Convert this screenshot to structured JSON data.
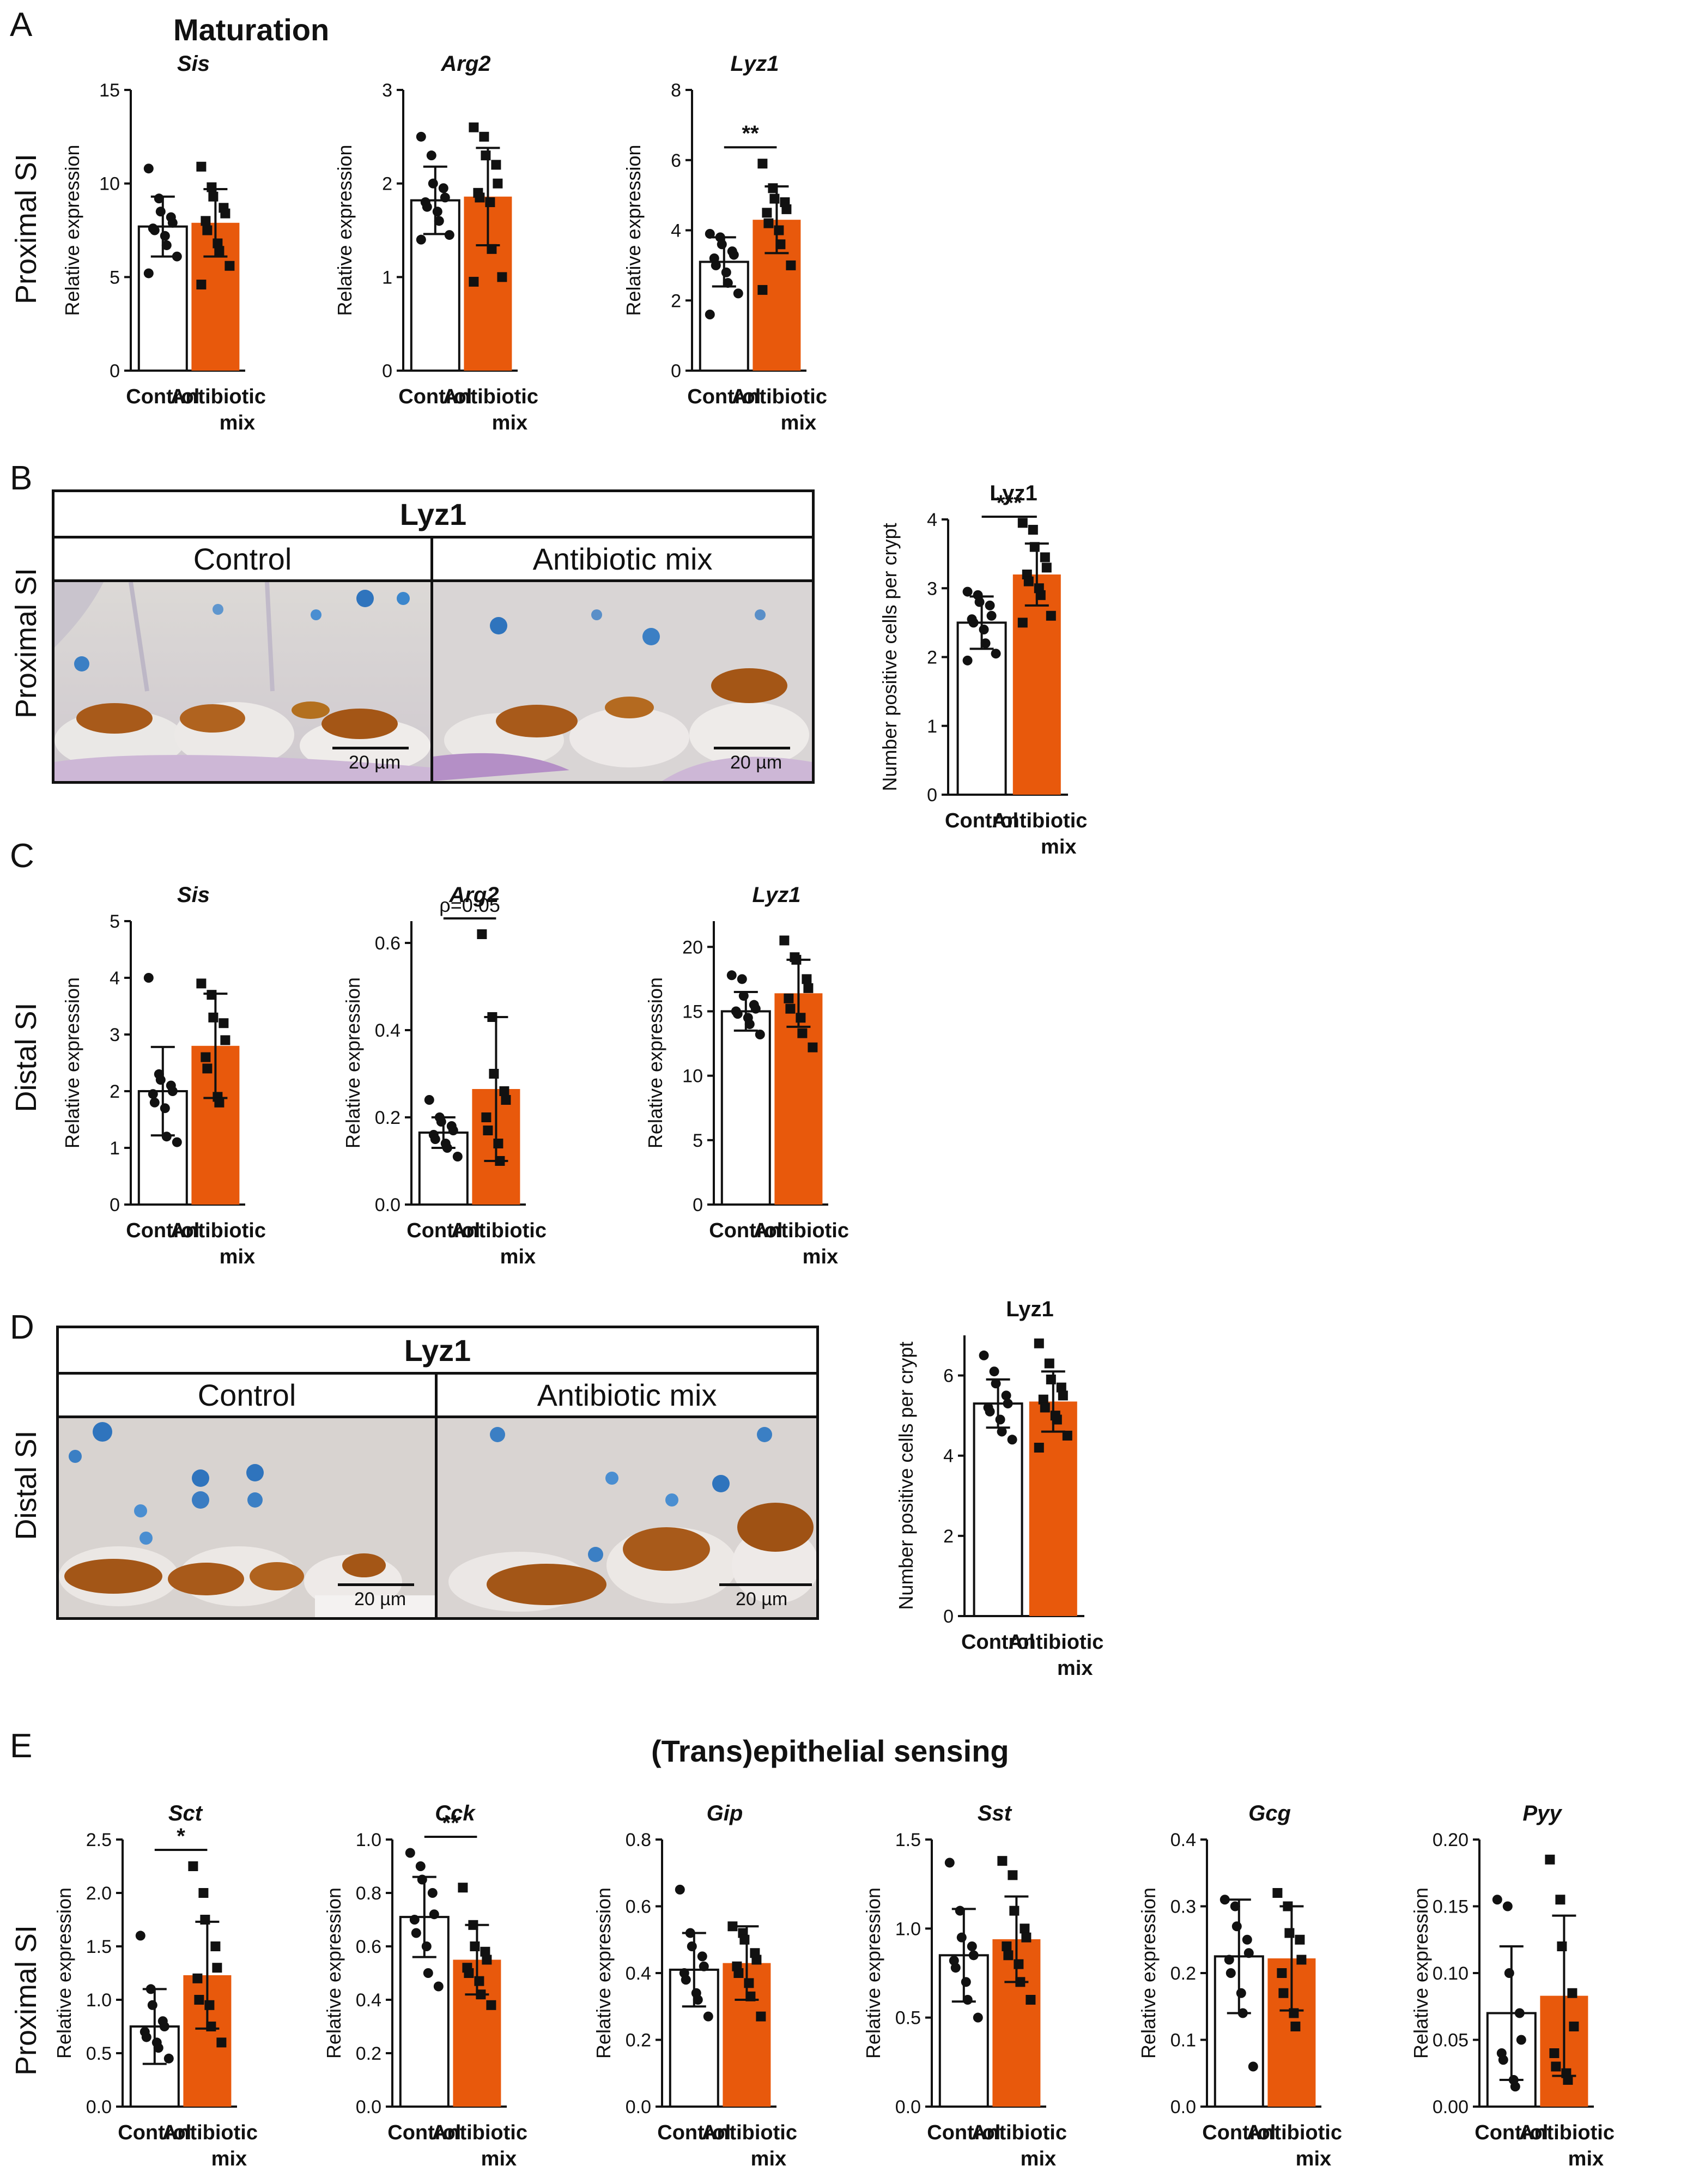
{
  "colors": {
    "control": "#ffffff",
    "antibiotic": "#e8590c",
    "axis": "#111111"
  },
  "panels": {
    "A": {
      "letter": "A",
      "heading": "Maturation",
      "row_label": "Proximal SI"
    },
    "B": {
      "letter": "B",
      "title": "Lyz1",
      "control_label": "Control",
      "treated_label": "Antibiotic mix",
      "row_label": "Proximal SI",
      "scalebar_left": "20 µm",
      "scalebar_right": "20 µm"
    },
    "C": {
      "letter": "C",
      "row_label": "Distal SI"
    },
    "D": {
      "letter": "D",
      "title": "Lyz1",
      "control_label": "Control",
      "treated_label": "Antibiotic mix",
      "row_label": "Distal SI",
      "scalebar_left": "20 µm",
      "scalebar_right": "20 µm"
    },
    "E": {
      "letter": "E",
      "heading": "(Trans)epithelial sensing",
      "row_label": "Proximal SI"
    }
  },
  "chart_data": [
    {
      "id": "A_sis",
      "type": "bar",
      "title": "Sis",
      "italic": true,
      "ylabel": "Relative expression",
      "categories": [
        "Control",
        "Antibiotic mix"
      ],
      "values": [
        7.7,
        7.9
      ],
      "sd": [
        1.6,
        1.8
      ],
      "ylim": [
        0,
        15
      ],
      "yticks": [
        0,
        5,
        10,
        15
      ],
      "points": [
        [
          10.8,
          9.2,
          8.5,
          8.2,
          7.9,
          7.6,
          7.5,
          7.2,
          6.7,
          6.1,
          5.2
        ],
        [
          10.9,
          9.8,
          9.3,
          8.7,
          8.4,
          8.0,
          7.5,
          6.8,
          6.4,
          5.6,
          4.6
        ]
      ],
      "significance": null
    },
    {
      "id": "A_arg2",
      "type": "bar",
      "title": "Arg2",
      "italic": true,
      "ylabel": "Relative expression",
      "categories": [
        "Control",
        "Antibiotic mix"
      ],
      "values": [
        1.82,
        1.86
      ],
      "sd": [
        0.36,
        0.52
      ],
      "ylim": [
        0,
        3
      ],
      "yticks": [
        0,
        1,
        2,
        3
      ],
      "points": [
        [
          2.5,
          2.3,
          2.0,
          1.95,
          1.85,
          1.8,
          1.75,
          1.7,
          1.6,
          1.45,
          1.4
        ],
        [
          2.6,
          2.5,
          2.3,
          2.2,
          2.0,
          1.9,
          1.85,
          1.8,
          1.3,
          1.0,
          0.95
        ]
      ],
      "significance": null
    },
    {
      "id": "A_lyz1",
      "type": "bar",
      "title": "Lyz1",
      "italic": true,
      "ylabel": "Relative expression",
      "categories": [
        "Control",
        "Antibiotic mix"
      ],
      "values": [
        3.1,
        4.3
      ],
      "sd": [
        0.7,
        0.95
      ],
      "ylim": [
        0,
        8
      ],
      "yticks": [
        0,
        2,
        4,
        6,
        8
      ],
      "points": [
        [
          3.9,
          3.8,
          3.6,
          3.4,
          3.3,
          3.2,
          3.0,
          2.8,
          2.5,
          2.2,
          1.6
        ],
        [
          5.9,
          5.2,
          4.9,
          4.8,
          4.6,
          4.5,
          4.2,
          4.0,
          3.6,
          3.0,
          2.3
        ]
      ],
      "significance": "**"
    },
    {
      "id": "B_lyz1",
      "type": "bar",
      "title": "Lyz1",
      "italic": false,
      "ylabel": "Number positive cells per crypt",
      "categories": [
        "Control",
        "Antibiotic mix"
      ],
      "values": [
        2.5,
        3.2
      ],
      "sd": [
        0.38,
        0.45
      ],
      "ylim": [
        0,
        4
      ],
      "yticks": [
        0,
        1,
        2,
        3,
        4
      ],
      "points": [
        [
          2.95,
          2.9,
          2.8,
          2.75,
          2.6,
          2.55,
          2.5,
          2.4,
          2.2,
          2.05,
          1.95
        ],
        [
          3.95,
          3.85,
          3.6,
          3.45,
          3.3,
          3.2,
          3.1,
          3.0,
          2.9,
          2.6,
          2.5
        ]
      ],
      "significance": "***"
    },
    {
      "id": "C_sis",
      "type": "bar",
      "title": "Sis",
      "italic": true,
      "ylabel": "Relative expression",
      "categories": [
        "Control",
        "Antibiotic mix"
      ],
      "values": [
        2.0,
        2.8
      ],
      "sd": [
        0.78,
        0.92
      ],
      "ylim": [
        0,
        5
      ],
      "yticks": [
        0,
        1,
        2,
        3,
        4,
        5
      ],
      "points": [
        [
          4.0,
          2.3,
          2.2,
          2.1,
          2.0,
          1.95,
          1.8,
          1.7,
          1.2,
          1.1
        ],
        [
          3.9,
          3.7,
          3.3,
          3.2,
          2.9,
          2.6,
          2.4,
          1.9,
          1.8
        ]
      ],
      "significance": null
    },
    {
      "id": "C_arg2",
      "type": "bar",
      "title": "Arg2",
      "italic": true,
      "ylabel": "Relative expression",
      "categories": [
        "Control",
        "Antibiotic mix"
      ],
      "values": [
        0.165,
        0.265
      ],
      "sd": [
        0.035,
        0.165
      ],
      "ylim": [
        0,
        0.65
      ],
      "yticks": [
        0.0,
        0.2,
        0.4,
        0.6
      ],
      "points": [
        [
          0.24,
          0.2,
          0.19,
          0.18,
          0.17,
          0.16,
          0.15,
          0.14,
          0.13,
          0.11
        ],
        [
          0.62,
          0.43,
          0.3,
          0.26,
          0.24,
          0.2,
          0.17,
          0.14,
          0.1
        ]
      ],
      "significance": "ρ=0.05"
    },
    {
      "id": "C_lyz1",
      "type": "bar",
      "title": "Lyz1",
      "italic": true,
      "ylabel": "Relative expression",
      "categories": [
        "Control",
        "Antibiotic mix"
      ],
      "values": [
        15.0,
        16.4
      ],
      "sd": [
        1.5,
        2.6
      ],
      "ylim": [
        0,
        22
      ],
      "yticks": [
        0,
        5,
        10,
        15,
        20
      ],
      "points": [
        [
          17.8,
          17.5,
          16.2,
          15.5,
          15.2,
          15.0,
          14.8,
          14.5,
          14.0,
          13.2
        ],
        [
          20.5,
          19.2,
          19.0,
          17.5,
          16.8,
          16.0,
          15.2,
          14.5,
          13.3,
          12.2
        ]
      ],
      "significance": null
    },
    {
      "id": "D_lyz1",
      "type": "bar",
      "title": "Lyz1",
      "italic": false,
      "ylabel": "Number positive cells per crypt",
      "categories": [
        "Control",
        "Antibiotic mix"
      ],
      "values": [
        5.3,
        5.35
      ],
      "sd": [
        0.6,
        0.75
      ],
      "ylim": [
        0,
        7
      ],
      "yticks": [
        0,
        2,
        4,
        6
      ],
      "points": [
        [
          6.5,
          6.1,
          5.8,
          5.5,
          5.3,
          5.2,
          5.1,
          4.9,
          4.6,
          4.4
        ],
        [
          6.8,
          6.3,
          5.9,
          5.7,
          5.5,
          5.4,
          5.2,
          5.0,
          4.9,
          4.5,
          4.2
        ]
      ],
      "significance": null
    },
    {
      "id": "E_sct",
      "type": "bar",
      "title": "Sct",
      "italic": true,
      "ylabel": "Relative expression",
      "categories": [
        "Control",
        "Antibiotic mix"
      ],
      "values": [
        0.75,
        1.23
      ],
      "sd": [
        0.35,
        0.5
      ],
      "ylim": [
        0,
        2.5
      ],
      "yticks": [
        0.0,
        0.5,
        1.0,
        1.5,
        2.0,
        2.5
      ],
      "points": [
        [
          1.6,
          1.1,
          0.95,
          0.8,
          0.75,
          0.7,
          0.65,
          0.6,
          0.55,
          0.45
        ],
        [
          2.25,
          2.0,
          1.75,
          1.5,
          1.3,
          1.2,
          1.0,
          0.95,
          0.75,
          0.6
        ]
      ],
      "significance": "*"
    },
    {
      "id": "E_cck",
      "type": "bar",
      "title": "Cck",
      "italic": true,
      "ylabel": "Relative expression",
      "categories": [
        "Control",
        "Antibiotic mix"
      ],
      "values": [
        0.71,
        0.55
      ],
      "sd": [
        0.15,
        0.13
      ],
      "ylim": [
        0,
        1.0
      ],
      "yticks": [
        0.0,
        0.2,
        0.4,
        0.6,
        0.8,
        1.0
      ],
      "points": [
        [
          0.95,
          0.9,
          0.85,
          0.8,
          0.72,
          0.7,
          0.65,
          0.6,
          0.5,
          0.45
        ],
        [
          0.82,
          0.68,
          0.6,
          0.58,
          0.55,
          0.52,
          0.5,
          0.47,
          0.42,
          0.38
        ]
      ],
      "significance": "**"
    },
    {
      "id": "E_gip",
      "type": "bar",
      "title": "Gip",
      "italic": true,
      "ylabel": "Relative expression",
      "categories": [
        "Control",
        "Antibiotic mix"
      ],
      "values": [
        0.41,
        0.43
      ],
      "sd": [
        0.11,
        0.11
      ],
      "ylim": [
        0,
        0.8
      ],
      "yticks": [
        0.0,
        0.2,
        0.4,
        0.6,
        0.8
      ],
      "points": [
        [
          0.65,
          0.52,
          0.48,
          0.45,
          0.42,
          0.4,
          0.38,
          0.34,
          0.32,
          0.27
        ],
        [
          0.54,
          0.52,
          0.5,
          0.46,
          0.44,
          0.42,
          0.4,
          0.37,
          0.33,
          0.27
        ]
      ],
      "significance": null
    },
    {
      "id": "E_sst",
      "type": "bar",
      "title": "Sst",
      "italic": true,
      "ylabel": "Relative expression",
      "categories": [
        "Control",
        "Antibiotic mix"
      ],
      "values": [
        0.85,
        0.94
      ],
      "sd": [
        0.26,
        0.24
      ],
      "ylim": [
        0,
        1.5
      ],
      "yticks": [
        0.0,
        0.5,
        1.0,
        1.5
      ],
      "points": [
        [
          1.37,
          1.1,
          0.95,
          0.9,
          0.85,
          0.82,
          0.78,
          0.7,
          0.6,
          0.5
        ],
        [
          1.38,
          1.3,
          1.1,
          1.0,
          0.95,
          0.9,
          0.85,
          0.8,
          0.7,
          0.6
        ]
      ],
      "significance": null
    },
    {
      "id": "E_gcg",
      "type": "bar",
      "title": "Gcg",
      "italic": true,
      "ylabel": "Relative expression",
      "categories": [
        "Control",
        "Antibiotic mix"
      ],
      "values": [
        0.225,
        0.222
      ],
      "sd": [
        0.085,
        0.078
      ],
      "ylim": [
        0,
        0.4
      ],
      "yticks": [
        0.0,
        0.1,
        0.2,
        0.3,
        0.4
      ],
      "points": [
        [
          0.31,
          0.3,
          0.27,
          0.25,
          0.23,
          0.22,
          0.2,
          0.17,
          0.14,
          0.06
        ],
        [
          0.32,
          0.3,
          0.26,
          0.25,
          0.22,
          0.2,
          0.17,
          0.14,
          0.12
        ]
      ],
      "significance": null
    },
    {
      "id": "E_pyy",
      "type": "bar",
      "title": "Pyy",
      "italic": true,
      "ylabel": "Relative expression",
      "categories": [
        "Control",
        "Antibiotic mix"
      ],
      "values": [
        0.07,
        0.083
      ],
      "sd": [
        0.05,
        0.06
      ],
      "ylim": [
        0,
        0.2
      ],
      "yticks": [
        0.0,
        0.05,
        0.1,
        0.15,
        0.2
      ],
      "points": [
        [
          0.155,
          0.15,
          0.1,
          0.07,
          0.05,
          0.04,
          0.035,
          0.02,
          0.015
        ],
        [
          0.185,
          0.155,
          0.12,
          0.085,
          0.06,
          0.04,
          0.03,
          0.025,
          0.02
        ]
      ],
      "significance": null
    }
  ]
}
